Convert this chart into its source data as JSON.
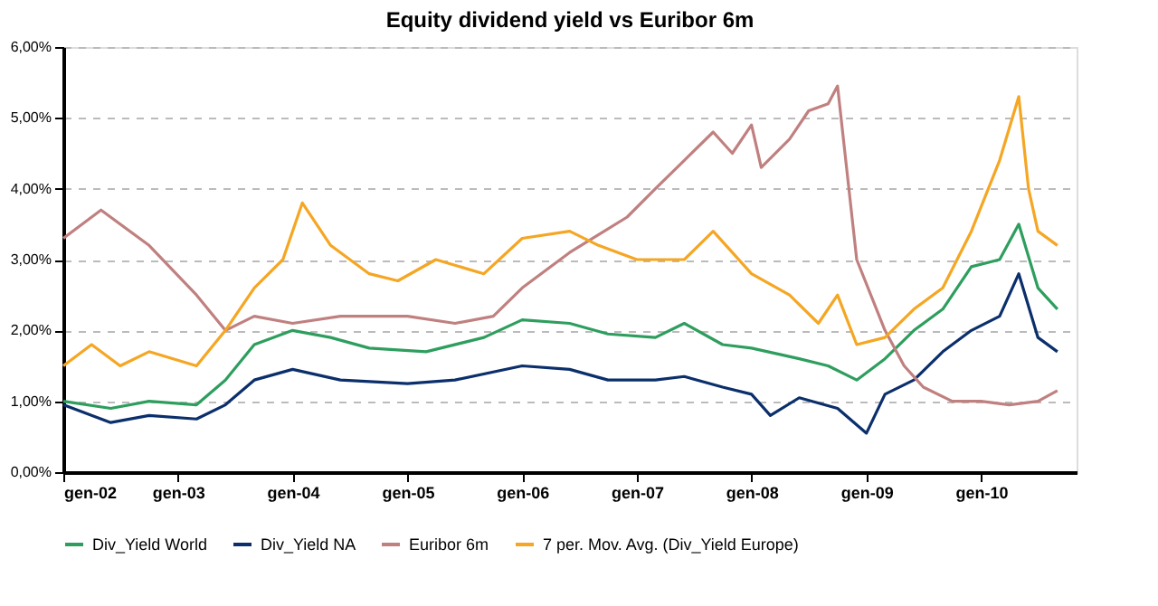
{
  "chart_data": {
    "type": "line",
    "title": "Equity dividend yield vs Euribor 6m",
    "xlim": [
      "2002-01",
      "2010-11"
    ],
    "xticks": [
      {
        "value": "2002-01",
        "label": "gen-02"
      },
      {
        "value": "2003-01",
        "label": "gen-03"
      },
      {
        "value": "2004-01",
        "label": "gen-04"
      },
      {
        "value": "2005-01",
        "label": "gen-05"
      },
      {
        "value": "2006-01",
        "label": "gen-06"
      },
      {
        "value": "2007-01",
        "label": "gen-07"
      },
      {
        "value": "2008-01",
        "label": "gen-08"
      },
      {
        "value": "2009-01",
        "label": "gen-09"
      },
      {
        "value": "2010-01",
        "label": "gen-10"
      }
    ],
    "ylim": [
      0,
      6
    ],
    "yticks": [
      {
        "value": 0,
        "label": "0,00%"
      },
      {
        "value": 1,
        "label": "1,00%"
      },
      {
        "value": 2,
        "label": "2,00%"
      },
      {
        "value": 3,
        "label": "3,00%"
      },
      {
        "value": 4,
        "label": "4,00%"
      },
      {
        "value": 5,
        "label": "5,00%"
      },
      {
        "value": 6,
        "label": "6,00%"
      }
    ],
    "grid": "y",
    "legend": "bottom",
    "marker": "none",
    "line_style": "solid",
    "series": [
      {
        "name": "Div_Yield World",
        "color": "#2e9e5e",
        "x": [
          "2002-01",
          "2002-06",
          "2002-10",
          "2003-03",
          "2003-06",
          "2003-09",
          "2004-01",
          "2004-05",
          "2004-09",
          "2005-03",
          "2005-09",
          "2006-01",
          "2006-06",
          "2006-10",
          "2007-03",
          "2007-06",
          "2007-10",
          "2008-01",
          "2008-06",
          "2008-09",
          "2008-12",
          "2009-03",
          "2009-06",
          "2009-09",
          "2009-12",
          "2010-03",
          "2010-05",
          "2010-07",
          "2010-09"
        ],
        "values": [
          1.0,
          0.9,
          1.0,
          0.95,
          1.3,
          1.8,
          2.0,
          1.9,
          1.75,
          1.7,
          1.9,
          2.15,
          2.1,
          1.95,
          1.9,
          2.1,
          1.8,
          1.75,
          1.6,
          1.5,
          1.3,
          1.6,
          2.0,
          2.3,
          2.9,
          3.0,
          3.5,
          2.6,
          2.3
        ]
      },
      {
        "name": "Div_Yield NA",
        "color": "#0b2f6b",
        "x": [
          "2002-01",
          "2002-06",
          "2002-10",
          "2003-03",
          "2003-06",
          "2003-09",
          "2004-01",
          "2004-06",
          "2005-01",
          "2005-06",
          "2006-01",
          "2006-06",
          "2006-10",
          "2007-03",
          "2007-06",
          "2007-10",
          "2008-01",
          "2008-03",
          "2008-06",
          "2008-10",
          "2009-01",
          "2009-03",
          "2009-06",
          "2009-09",
          "2009-12",
          "2010-03",
          "2010-05",
          "2010-07",
          "2010-09"
        ],
        "values": [
          0.95,
          0.7,
          0.8,
          0.75,
          0.95,
          1.3,
          1.45,
          1.3,
          1.25,
          1.3,
          1.5,
          1.45,
          1.3,
          1.3,
          1.35,
          1.2,
          1.1,
          0.8,
          1.05,
          0.9,
          0.55,
          1.1,
          1.3,
          1.7,
          2.0,
          2.2,
          2.8,
          1.9,
          1.7
        ]
      },
      {
        "name": "Euribor 6m",
        "color": "#c08080",
        "x": [
          "2002-01",
          "2002-05",
          "2002-10",
          "2003-03",
          "2003-06",
          "2003-09",
          "2004-01",
          "2004-06",
          "2005-01",
          "2005-06",
          "2005-10",
          "2006-01",
          "2006-06",
          "2006-12",
          "2007-03",
          "2007-06",
          "2007-09",
          "2007-11",
          "2008-01",
          "2008-02",
          "2008-05",
          "2008-07",
          "2008-09",
          "2008-10",
          "2008-12",
          "2009-03",
          "2009-05",
          "2009-07",
          "2009-10",
          "2010-01",
          "2010-04",
          "2010-07",
          "2010-09"
        ],
        "values": [
          3.3,
          3.7,
          3.2,
          2.5,
          2.0,
          2.2,
          2.1,
          2.2,
          2.2,
          2.1,
          2.2,
          2.6,
          3.1,
          3.6,
          4.0,
          4.4,
          4.8,
          4.5,
          4.9,
          4.3,
          4.7,
          5.1,
          5.2,
          5.45,
          3.0,
          2.0,
          1.5,
          1.2,
          1.0,
          1.0,
          0.95,
          1.0,
          1.15
        ]
      },
      {
        "name": "7 per. Mov. Avg. (Div_Yield Europe)",
        "color": "#f5a623",
        "x": [
          "2002-01",
          "2002-04",
          "2002-07",
          "2002-10",
          "2003-03",
          "2003-06",
          "2003-09",
          "2003-12",
          "2004-02",
          "2004-05",
          "2004-09",
          "2004-12",
          "2005-04",
          "2005-09",
          "2006-01",
          "2006-06",
          "2006-09",
          "2007-01",
          "2007-06",
          "2007-09",
          "2008-01",
          "2008-05",
          "2008-08",
          "2008-10",
          "2008-12",
          "2009-03",
          "2009-06",
          "2009-09",
          "2009-12",
          "2010-03",
          "2010-05",
          "2010-06",
          "2010-07",
          "2010-09"
        ],
        "values": [
          1.5,
          1.8,
          1.5,
          1.7,
          1.5,
          2.0,
          2.6,
          3.0,
          3.8,
          3.2,
          2.8,
          2.7,
          3.0,
          2.8,
          3.3,
          3.4,
          3.2,
          3.0,
          3.0,
          3.4,
          2.8,
          2.5,
          2.1,
          2.5,
          1.8,
          1.9,
          2.3,
          2.6,
          3.4,
          4.4,
          5.3,
          4.0,
          3.4,
          3.2
        ]
      }
    ]
  }
}
